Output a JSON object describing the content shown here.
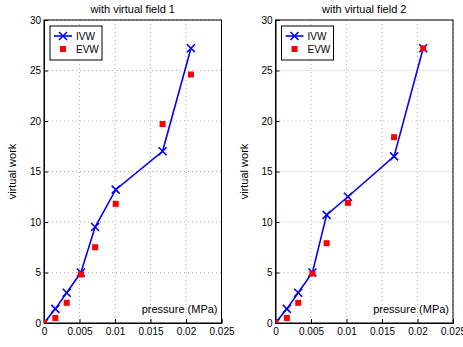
{
  "chart_data": [
    {
      "type": "line",
      "title": "with virtual field 1",
      "x_label": "pressure (MPa)",
      "y_label": "virtual work",
      "x": [
        0,
        0.0016,
        0.0032,
        0.0052,
        0.0072,
        0.0101,
        0.0167,
        0.0207
      ],
      "xlim": [
        0,
        0.025
      ],
      "xticks": [
        0,
        0.005,
        0.01,
        0.015,
        0.02,
        0.025
      ],
      "ylim": [
        0,
        30
      ],
      "yticks": [
        0,
        5,
        10,
        15,
        20,
        25,
        30
      ],
      "grid": true,
      "legend": "upper left",
      "series": [
        {
          "name": "IVW",
          "color": "#0000ff",
          "marker": "x",
          "line_style": "solid",
          "values": [
            0,
            1.4,
            3.0,
            5.0,
            9.5,
            13.2,
            17.0,
            27.2
          ]
        },
        {
          "name": "EVW",
          "color": "#ff0000",
          "marker": "square",
          "line_style": "none",
          "values": [
            0,
            0.5,
            2.0,
            4.8,
            7.5,
            11.8,
            19.7,
            24.6
          ]
        }
      ]
    },
    {
      "type": "line",
      "title": "with virtual field 2",
      "x_label": "pressure (MPa)",
      "y_label": "virtual work",
      "x": [
        0,
        0.0016,
        0.0032,
        0.0052,
        0.0072,
        0.0102,
        0.0167,
        0.0208
      ],
      "xlim": [
        0,
        0.025
      ],
      "xticks": [
        0,
        0.005,
        0.01,
        0.015,
        0.02,
        0.025
      ],
      "ylim": [
        0,
        30
      ],
      "yticks": [
        0,
        5,
        10,
        15,
        20,
        25,
        30
      ],
      "grid": true,
      "legend": "upper left",
      "series": [
        {
          "name": "IVW",
          "color": "#0000ff",
          "marker": "x",
          "line_style": "solid",
          "values": [
            0,
            1.4,
            3.0,
            5.0,
            10.7,
            12.5,
            16.5,
            27.2
          ]
        },
        {
          "name": "EVW",
          "color": "#ff0000",
          "marker": "square",
          "line_style": "none",
          "values": [
            0,
            0.5,
            2.0,
            4.9,
            7.9,
            11.9,
            18.4,
            27.2
          ]
        }
      ]
    }
  ]
}
